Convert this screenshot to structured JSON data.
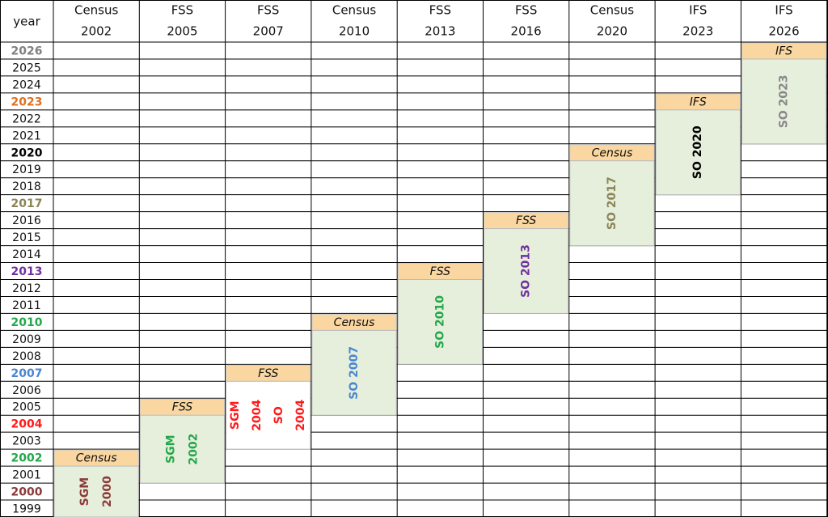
{
  "header": {
    "year_label": "year",
    "columns": [
      {
        "name": "Census",
        "year": "2002"
      },
      {
        "name": "FSS",
        "year": "2005"
      },
      {
        "name": "FSS",
        "year": "2007"
      },
      {
        "name": "Census",
        "year": "2010"
      },
      {
        "name": "FSS",
        "year": "2013"
      },
      {
        "name": "FSS",
        "year": "2016"
      },
      {
        "name": "Census",
        "year": "2020"
      },
      {
        "name": "IFS",
        "year": "2023"
      },
      {
        "name": "IFS",
        "year": "2026"
      }
    ]
  },
  "years": [
    "2026",
    "2025",
    "2024",
    "2023",
    "2022",
    "2021",
    "2020",
    "2019",
    "2018",
    "2017",
    "2016",
    "2015",
    "2014",
    "2013",
    "2012",
    "2011",
    "2010",
    "2009",
    "2008",
    "2007",
    "2006",
    "2005",
    "2004",
    "2003",
    "2002",
    "2001",
    "2000",
    "1999"
  ],
  "blocks": [
    {
      "survey": "Census",
      "texts": [
        "SGM",
        "2000"
      ]
    },
    {
      "survey": "FSS",
      "texts": [
        "SGM",
        "2002"
      ]
    },
    {
      "survey": "FSS",
      "texts": [
        "SGM",
        "2004",
        "SO",
        "2004"
      ]
    },
    {
      "survey": "Census",
      "texts": [
        "SO 2007"
      ]
    },
    {
      "survey": "FSS",
      "texts": [
        "SO 2010"
      ]
    },
    {
      "survey": "FSS",
      "texts": [
        "SO 2013"
      ]
    },
    {
      "survey": "Census",
      "texts": [
        "SO 2017"
      ]
    },
    {
      "survey": "IFS",
      "texts": [
        "SO 2020"
      ]
    },
    {
      "survey": "IFS",
      "texts": [
        "SO 2023"
      ]
    }
  ]
}
